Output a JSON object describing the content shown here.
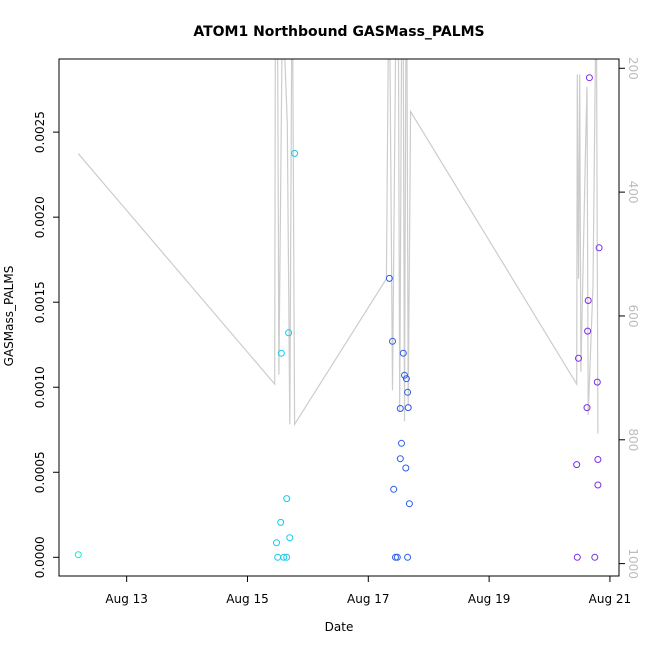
{
  "chart_data": {
    "type": "scatter",
    "title": "ATOM1 Northbound GASMass_PALMS",
    "xlabel": "Date",
    "ylabel": "GASMass_PALMS",
    "x_ticks": [
      {
        "x": 13,
        "label": "Aug 13"
      },
      {
        "x": 15,
        "label": "Aug 15"
      },
      {
        "x": 17,
        "label": "Aug 17"
      },
      {
        "x": 19,
        "label": "Aug 19"
      },
      {
        "x": 21,
        "label": "Aug 21"
      }
    ],
    "y_ticks": [
      {
        "y": 0.0,
        "label": "0.0000"
      },
      {
        "y": 0.0005,
        "label": "0.0005"
      },
      {
        "y": 0.001,
        "label": "0.0010"
      },
      {
        "y": 0.0015,
        "label": "0.0015"
      },
      {
        "y": 0.002,
        "label": "0.0020"
      },
      {
        "y": 0.0025,
        "label": "0.0025"
      }
    ],
    "y2_ticks": [
      {
        "y": 200,
        "label": "200"
      },
      {
        "y": 400,
        "label": "400"
      },
      {
        "y": 600,
        "label": "600"
      },
      {
        "y": 800,
        "label": "800"
      },
      {
        "y": 1000,
        "label": "1000"
      }
    ],
    "xlim": [
      11.88,
      21.15
    ],
    "ylim": [
      -0.00011,
      0.00293
    ],
    "y2lim": [
      1020,
      185
    ],
    "y2_reversed": true,
    "grid": false,
    "line_color": "#cccccc",
    "points": [
      {
        "x": 12.2,
        "y": 1.5e-05,
        "color": "#19e6c8"
      },
      {
        "x": 15.48,
        "y": 8.5e-05,
        "color": "#19c8e6"
      },
      {
        "x": 15.5,
        "y": 0.0,
        "color": "#19c8e6"
      },
      {
        "x": 15.55,
        "y": 0.000205,
        "color": "#19c8e6"
      },
      {
        "x": 15.56,
        "y": 0.0012,
        "color": "#19c8e6"
      },
      {
        "x": 15.6,
        "y": 0.0,
        "color": "#19c8e6"
      },
      {
        "x": 15.65,
        "y": 0.0,
        "color": "#19c8e6"
      },
      {
        "x": 15.65,
        "y": 0.000345,
        "color": "#19c8e6"
      },
      {
        "x": 15.68,
        "y": 0.00132,
        "color": "#19c8e6"
      },
      {
        "x": 15.7,
        "y": 0.000115,
        "color": "#19c8e6"
      },
      {
        "x": 15.78,
        "y": 0.002375,
        "color": "#19c8e6"
      },
      {
        "x": 17.35,
        "y": 0.00164,
        "color": "#2e5ce6"
      },
      {
        "x": 17.4,
        "y": 0.00127,
        "color": "#2e5ce6"
      },
      {
        "x": 17.42,
        "y": 0.0004,
        "color": "#2e5ce6"
      },
      {
        "x": 17.45,
        "y": 0.0,
        "color": "#2e5ce6"
      },
      {
        "x": 17.48,
        "y": 0.0,
        "color": "#2e5ce6"
      },
      {
        "x": 17.53,
        "y": 0.00058,
        "color": "#2e5ce6"
      },
      {
        "x": 17.53,
        "y": 0.000875,
        "color": "#2e5ce6"
      },
      {
        "x": 17.55,
        "y": 0.00067,
        "color": "#2e5ce6"
      },
      {
        "x": 17.58,
        "y": 0.0012,
        "color": "#2e5ce6"
      },
      {
        "x": 17.6,
        "y": 0.00107,
        "color": "#2e5ce6"
      },
      {
        "x": 17.62,
        "y": 0.000525,
        "color": "#2e5ce6"
      },
      {
        "x": 17.63,
        "y": 0.00105,
        "color": "#2e5ce6"
      },
      {
        "x": 17.65,
        "y": 0.0,
        "color": "#2e5ce6"
      },
      {
        "x": 17.65,
        "y": 0.00097,
        "color": "#2e5ce6"
      },
      {
        "x": 17.66,
        "y": 0.00088,
        "color": "#2e5ce6"
      },
      {
        "x": 17.68,
        "y": 0.000315,
        "color": "#2e5ce6"
      },
      {
        "x": 20.45,
        "y": 0.000545,
        "color": "#7a2ee6"
      },
      {
        "x": 20.46,
        "y": 0.0,
        "color": "#7a2ee6"
      },
      {
        "x": 20.48,
        "y": 0.00117,
        "color": "#7a2ee6"
      },
      {
        "x": 20.62,
        "y": 0.00088,
        "color": "#7a2ee6"
      },
      {
        "x": 20.63,
        "y": 0.00133,
        "color": "#7a2ee6"
      },
      {
        "x": 20.64,
        "y": 0.00151,
        "color": "#7a2ee6"
      },
      {
        "x": 20.66,
        "y": 0.00282,
        "color": "#7a2ee6"
      },
      {
        "x": 20.75,
        "y": 0.0,
        "color": "#7a2ee6"
      },
      {
        "x": 20.79,
        "y": 0.00103,
        "color": "#7a2ee6"
      },
      {
        "x": 20.8,
        "y": 0.000425,
        "color": "#7a2ee6"
      },
      {
        "x": 20.8,
        "y": 0.000575,
        "color": "#7a2ee6"
      },
      {
        "x": 20.82,
        "y": 0.00182,
        "color": "#7a2ee6"
      }
    ],
    "line": [
      {
        "x": 12.2,
        "y2": 338
      },
      {
        "x": 15.45,
        "y2": 710
      },
      {
        "x": 15.46,
        "y2": 185
      },
      {
        "x": 15.5,
        "y2": 185
      },
      {
        "x": 15.52,
        "y2": 695
      },
      {
        "x": 15.57,
        "y2": 185
      },
      {
        "x": 15.62,
        "y2": 185
      },
      {
        "x": 15.66,
        "y2": 290
      },
      {
        "x": 15.7,
        "y2": 775
      },
      {
        "x": 15.73,
        "y2": 185
      },
      {
        "x": 15.75,
        "y2": 185
      },
      {
        "x": 15.78,
        "y2": 775
      },
      {
        "x": 17.3,
        "y2": 540
      },
      {
        "x": 17.33,
        "y2": 185
      },
      {
        "x": 17.36,
        "y2": 185
      },
      {
        "x": 17.4,
        "y2": 720
      },
      {
        "x": 17.45,
        "y2": 185
      },
      {
        "x": 17.5,
        "y2": 185
      },
      {
        "x": 17.52,
        "y2": 755
      },
      {
        "x": 17.55,
        "y2": 185
      },
      {
        "x": 17.58,
        "y2": 185
      },
      {
        "x": 17.6,
        "y2": 770
      },
      {
        "x": 17.62,
        "y2": 185
      },
      {
        "x": 17.64,
        "y2": 185
      },
      {
        "x": 17.66,
        "y2": 745
      },
      {
        "x": 17.7,
        "y2": 270
      },
      {
        "x": 20.45,
        "y2": 710
      },
      {
        "x": 20.46,
        "y2": 210
      },
      {
        "x": 20.48,
        "y2": 540
      },
      {
        "x": 20.5,
        "y2": 210
      },
      {
        "x": 20.52,
        "y2": 690
      },
      {
        "x": 20.6,
        "y2": 310
      },
      {
        "x": 20.62,
        "y2": 230
      },
      {
        "x": 20.64,
        "y2": 760
      },
      {
        "x": 20.72,
        "y2": 550
      },
      {
        "x": 20.76,
        "y2": 185
      },
      {
        "x": 20.78,
        "y2": 185
      },
      {
        "x": 20.8,
        "y2": 790
      }
    ]
  }
}
